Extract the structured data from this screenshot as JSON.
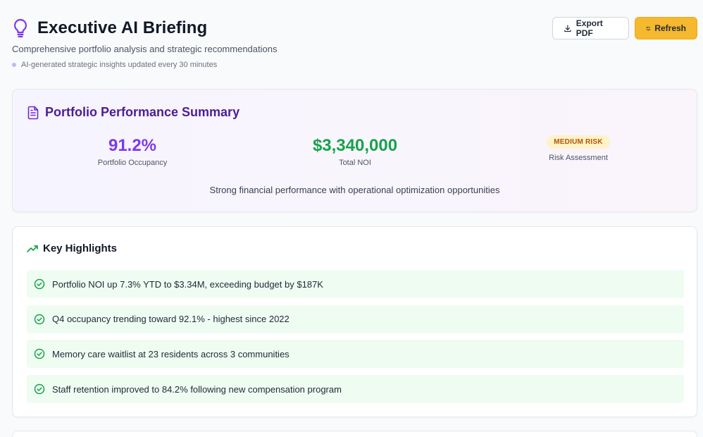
{
  "header": {
    "icon": "lightbulb-icon",
    "title": "Executive AI Briefing",
    "subtitle": "Comprehensive portfolio analysis and strategic recommendations",
    "update_note": "AI-generated strategic insights updated every 30 minutes",
    "accent_color": "#7c3aed"
  },
  "actions": {
    "export_label": "Export PDF",
    "refresh_label": "Refresh",
    "refresh_color": "#f5b82e"
  },
  "summary": {
    "title": "Portfolio Performance Summary",
    "occupancy_value": "91.2%",
    "occupancy_label": "Portfolio Occupancy",
    "noi_value": "$3,340,000",
    "noi_label": "Total NOI",
    "risk_badge": "MEDIUM RISK",
    "risk_label": "Risk Assessment",
    "summary_text": "Strong financial performance with operational optimization opportunities"
  },
  "highlights": {
    "title": "Key Highlights",
    "items": [
      "Portfolio NOI up 7.3% YTD to $3.34M, exceeding budget by $187K",
      "Q4 occupancy trending toward 92.1% - highest since 2022",
      "Memory care waitlist at 23 residents across 3 communities",
      "Staff retention improved to 84.2% following new compensation program"
    ]
  }
}
